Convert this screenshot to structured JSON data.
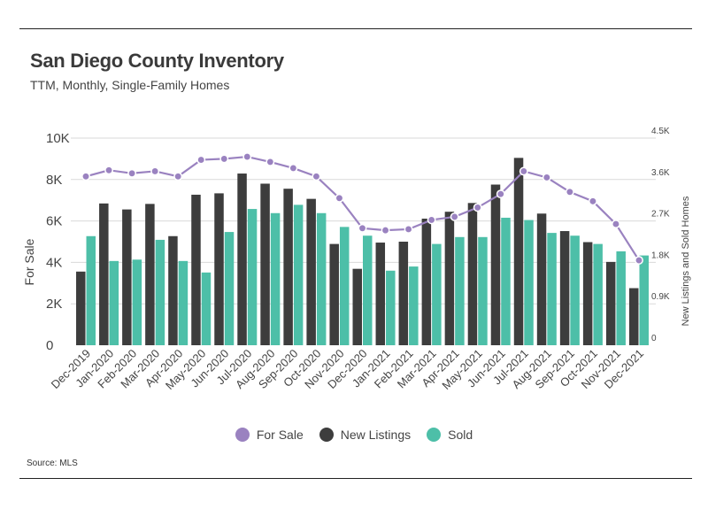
{
  "header": {
    "title": "San Diego County Inventory",
    "subtitle": "TTM, Monthly, Single-Family Homes"
  },
  "footer": {
    "source": "Source:  MLS"
  },
  "colors": {
    "for_sale": "#9a82c0",
    "new_listings": "#3d3d3d",
    "sold": "#4dbfa8",
    "grid": "#d9d9d9"
  },
  "chart_data": {
    "type": "bar",
    "title": "San Diego County Inventory",
    "subtitle": "TTM, Monthly, Single-Family Homes",
    "ylabel": "For Sale",
    "y2label": "New Listings and Sold Homes",
    "ylim": [
      0,
      10000
    ],
    "y2lim": [
      0,
      4500
    ],
    "yticks": [
      "0",
      "2K",
      "4K",
      "6K",
      "8K",
      "10K"
    ],
    "y2ticks": [
      "0",
      "0.9K",
      "1.8K",
      "2.7K",
      "3.6K",
      "4.5K"
    ],
    "grid": true,
    "legend_position": "bottom",
    "categories": [
      "Dec-2019",
      "Jan-2020",
      "Feb-2020",
      "Mar-2020",
      "Apr-2020",
      "May-2020",
      "Jun-2020",
      "Jul-2020",
      "Aug-2020",
      "Sep-2020",
      "Oct-2020",
      "Nov-2020",
      "Dec-2020",
      "Jan-2021",
      "Feb-2021",
      "Mar-2021",
      "Apr-2021",
      "May-2021",
      "Jun-2021",
      "Jul-2021",
      "Aug-2021",
      "Sep-2021",
      "Oct-2021",
      "Nov-2021",
      "Dec-2021"
    ],
    "series": [
      {
        "name": "For Sale",
        "type": "line",
        "axis": "left",
        "values": [
          8150,
          8450,
          8300,
          8400,
          8150,
          8950,
          9000,
          9100,
          8850,
          8550,
          8150,
          7100,
          5650,
          5550,
          5600,
          6050,
          6200,
          6650,
          7300,
          8400,
          8100,
          7400,
          6950,
          5850,
          4100
        ]
      },
      {
        "name": "New Listings",
        "type": "bar",
        "axis": "right",
        "values": [
          1600,
          3080,
          2950,
          3070,
          2370,
          3270,
          3300,
          3730,
          3510,
          3400,
          3180,
          2200,
          1660,
          2230,
          2250,
          2750,
          2900,
          3090,
          3490,
          4070,
          2860,
          2480,
          2240,
          1810,
          1240
        ]
      },
      {
        "name": "Sold",
        "type": "bar",
        "axis": "right",
        "values": [
          2370,
          1830,
          1860,
          2290,
          1830,
          1580,
          2460,
          2960,
          2870,
          3050,
          2870,
          2570,
          2380,
          1620,
          1710,
          2200,
          2350,
          2350,
          2770,
          2720,
          2440,
          2380,
          2200,
          2040,
          1950
        ]
      }
    ]
  }
}
